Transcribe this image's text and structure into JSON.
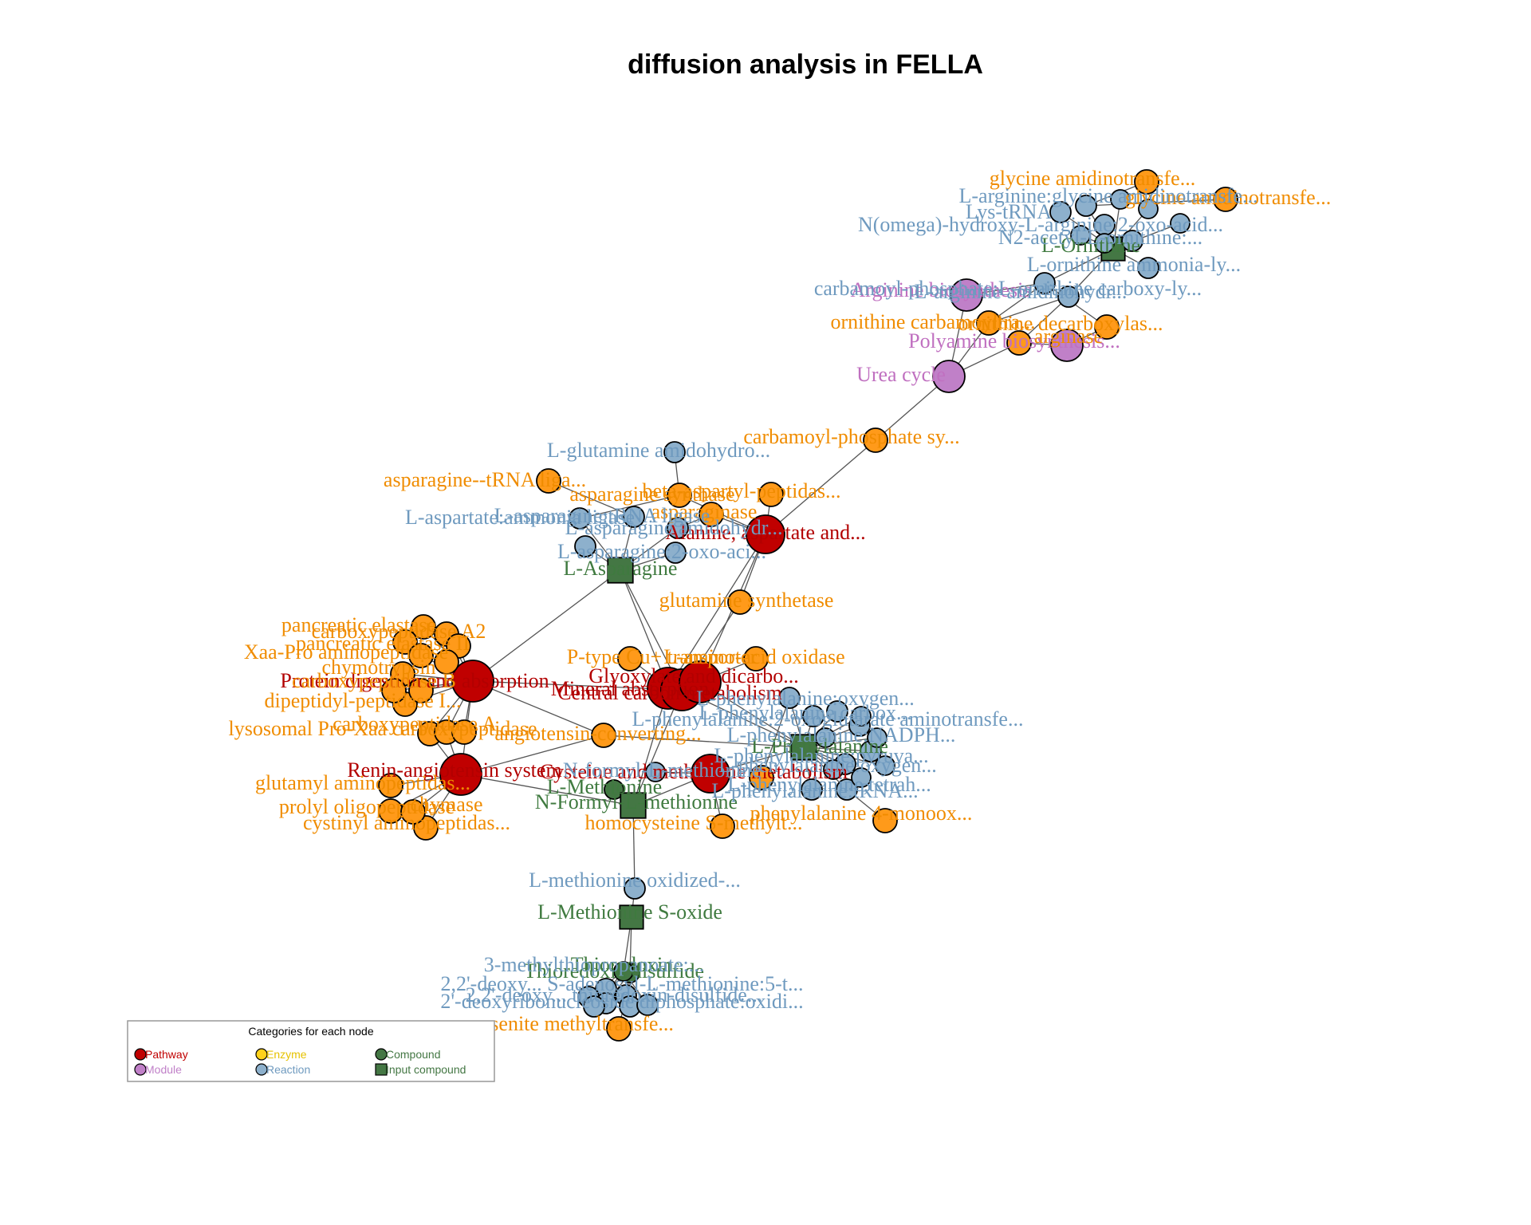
{
  "title": "diffusion analysis in FELLA",
  "colors": {
    "pathway": "#c00000",
    "module": "#c080c8",
    "enzyme": "#ff9a1a",
    "reaction": "#8db0cc",
    "compound": "#447744",
    "edge": "#555555"
  },
  "legend": {
    "title": "Categories for each node",
    "items": [
      {
        "label": "Pathway",
        "type": "pathway",
        "shape": "circle"
      },
      {
        "label": "Enzyme",
        "type": "enzyme",
        "shape": "circle"
      },
      {
        "label": "Compound",
        "type": "compound",
        "shape": "circle"
      },
      {
        "label": "Module",
        "type": "module",
        "shape": "circle"
      },
      {
        "label": "Reaction",
        "type": "reaction",
        "shape": "circle"
      },
      {
        "label": "Input compound",
        "type": "compound",
        "shape": "square"
      }
    ]
  },
  "nodes": [
    {
      "id": "ur_cycle",
      "label": "Urea cycle",
      "type": "module"
    },
    {
      "id": "arg_bio",
      "label": "Arginine biosynthesis",
      "type": "module"
    },
    {
      "id": "polyamine",
      "label": "Polyamine biosynthesis...",
      "type": "module"
    },
    {
      "id": "gly_amino1",
      "label": "glycine amidinotransfe...",
      "type": "enzyme"
    },
    {
      "id": "gly_amino2",
      "label": "glycine amidinotransfe...",
      "type": "enzyme"
    },
    {
      "id": "orn_carbamoyl",
      "label": "ornithine carbamoyltra...",
      "type": "enzyme"
    },
    {
      "id": "orn_decarb",
      "label": "ornithine decarboxylas...",
      "type": "enzyme"
    },
    {
      "id": "arginase",
      "label": "arginase",
      "type": "enzyme"
    },
    {
      "id": "carb_phos",
      "label": "carbamoyl-phosphate sy...",
      "type": "enzyme"
    },
    {
      "id": "l_ornithine",
      "label": "L-Ornithine",
      "type": "compound",
      "input": true
    },
    {
      "id": "r_arg1",
      "label": "L-arginine:glycine amidinotransfe...",
      "type": "reaction"
    },
    {
      "id": "r_lys",
      "label": "Lys-tRNA",
      "type": "reaction"
    },
    {
      "id": "r_nomega",
      "label": "N(omega)-hydroxy-L-arginine:2-oxo-acid...",
      "type": "reaction"
    },
    {
      "id": "r_n2",
      "label": "N2-acetyl-L-ornithine:...",
      "type": "reaction"
    },
    {
      "id": "r_orn_amm",
      "label": "L-ornithine ammonia-ly...",
      "type": "reaction"
    },
    {
      "id": "r_carbp",
      "label": "carbamoyl-phosphate:L-ornithine carboxy-ly...",
      "type": "reaction"
    },
    {
      "id": "r_arg_amid",
      "label": "L-arginine amidinohydr...",
      "type": "reaction"
    },
    {
      "id": "r_ornx1",
      "label": "",
      "type": "reaction"
    },
    {
      "id": "r_ornx2",
      "label": "",
      "type": "reaction"
    },
    {
      "id": "r_ornx3",
      "label": "",
      "type": "reaction"
    },
    {
      "id": "r_ornx4",
      "label": "",
      "type": "reaction"
    },
    {
      "id": "r_ornx5",
      "label": "",
      "type": "reaction"
    },
    {
      "id": "ala_asp",
      "label": "Alanine, aspartate and...",
      "type": "pathway"
    },
    {
      "id": "asn_trna",
      "label": "asparagine--tRNA liga...",
      "type": "enzyme"
    },
    {
      "id": "asn_synth",
      "label": "asparagine synthase",
      "type": "enzyme"
    },
    {
      "id": "beta_asp",
      "label": "beta-aspartyl-peptidas...",
      "type": "enzyme"
    },
    {
      "id": "asparaginase",
      "label": "asparaginase",
      "type": "enzyme"
    },
    {
      "id": "gln_synth",
      "label": "glutamine synthetase",
      "type": "enzyme"
    },
    {
      "id": "r_gln_amid",
      "label": "L-glutamine amidohydro...",
      "type": "reaction"
    },
    {
      "id": "r_asp_amm",
      "label": "L-aspartate:ammonia ligase",
      "type": "reaction"
    },
    {
      "id": "r_asn_trna",
      "label": "L-asparagine:tRNA ligase",
      "type": "reaction"
    },
    {
      "id": "r_asn_amid",
      "label": "L-asparagine amidohydr...",
      "type": "reaction"
    },
    {
      "id": "r_asn_2oxo",
      "label": "L-asparagine:2-oxo-aci...",
      "type": "reaction"
    },
    {
      "id": "r_asnx",
      "label": "",
      "type": "reaction"
    },
    {
      "id": "l_asparagine",
      "label": "L-Asparagine",
      "type": "compound",
      "input": true
    },
    {
      "id": "protein_dig",
      "label": "Protein digestion and absorption",
      "type": "pathway"
    },
    {
      "id": "pancreatic",
      "label": "pancreatic elastase",
      "type": "enzyme"
    },
    {
      "id": "carboxypep_a2",
      "label": "carboxypeptidase A2",
      "type": "enzyme"
    },
    {
      "id": "pancreatic2",
      "label": "pancreatic elastase II",
      "type": "enzyme"
    },
    {
      "id": "xaa_pro",
      "label": "Xaa-Pro aminopeptidase",
      "type": "enzyme"
    },
    {
      "id": "chymotrypsin",
      "label": "chymotrypsin",
      "type": "enzyme"
    },
    {
      "id": "carboxypep_b",
      "label": "carboxypeptidase B",
      "type": "enzyme"
    },
    {
      "id": "dipeptidyl",
      "label": "dipeptidyl-peptidase I...",
      "type": "enzyme"
    },
    {
      "id": "lysosomal",
      "label": "lysosomal Pro-Xaa carboxypeptidase",
      "type": "enzyme"
    },
    {
      "id": "carboxypep_a",
      "label": "carboxypeptidase A",
      "type": "enzyme"
    },
    {
      "id": "trypsin",
      "label": "",
      "type": "enzyme"
    },
    {
      "id": "enz_px1",
      "label": "",
      "type": "enzyme"
    },
    {
      "id": "enz_px2",
      "label": "",
      "type": "enzyme"
    },
    {
      "id": "enz_px3",
      "label": "",
      "type": "enzyme"
    },
    {
      "id": "renin",
      "label": "Renin-angiotensin system",
      "type": "pathway"
    },
    {
      "id": "angio_conv",
      "label": "angiotensin-converting...",
      "type": "enzyme"
    },
    {
      "id": "glutamyl",
      "label": "glutamyl aminopeptidas...",
      "type": "enzyme"
    },
    {
      "id": "prolyl",
      "label": "prolyl oligopeptidase",
      "type": "enzyme"
    },
    {
      "id": "cystinyl",
      "label": "cystinyl aminopeptidas...",
      "type": "enzyme"
    },
    {
      "id": "chymase",
      "label": "chymase",
      "type": "enzyme"
    },
    {
      "id": "mineral",
      "label": "Mineral absorption",
      "type": "pathway"
    },
    {
      "id": "central",
      "label": "Central carbon metabolism",
      "type": "pathway"
    },
    {
      "id": "glyoxylate",
      "label": "Glyoxylate and dicarbo...",
      "type": "pathway"
    },
    {
      "id": "ptype",
      "label": "P-type Cu+ transporter",
      "type": "enzyme"
    },
    {
      "id": "asp_ox",
      "label": "L-amino-acid oxidase",
      "type": "enzyme"
    },
    {
      "id": "cysteine",
      "label": "Cysteine and methionine metabolism",
      "type": "pathway"
    },
    {
      "id": "homocys",
      "label": "homocysteine S-methylt...",
      "type": "enzyme"
    },
    {
      "id": "l_methionine",
      "label": "L-Methionine",
      "type": "compound"
    },
    {
      "id": "n_formyl",
      "label": "N-Formyl-L-methionine",
      "type": "compound"
    },
    {
      "id": "l_methionine_in",
      "label": "",
      "type": "compound",
      "input": true
    },
    {
      "id": "r_nfmet",
      "label": "N-formyl-L-methionine",
      "type": "reaction"
    },
    {
      "id": "l_phenylalanine",
      "label": "L-Phenylalanine",
      "type": "compound",
      "input": true
    },
    {
      "id": "r_lphe",
      "label": "L-phenylalanine:oxygen...",
      "type": "reaction"
    },
    {
      "id": "r_lphe2",
      "label": "L-phenylalanine carbox...",
      "type": "reaction"
    },
    {
      "id": "r_lphe3",
      "label": "L-phenylalanine:2-oxoglutarate aminotransfe...",
      "type": "reaction"
    },
    {
      "id": "r_lphe4",
      "label": "L-phenylalanine:NADPH...",
      "type": "reaction"
    },
    {
      "id": "r_lphe5",
      "label": "L-phenylalanine:pyruva...",
      "type": "reaction"
    },
    {
      "id": "r_lphe6",
      "label": "L-phenylalanine:oxygen...",
      "type": "reaction"
    },
    {
      "id": "r_lphe7",
      "label": "L-phenylalanine,tetrah...",
      "type": "reaction"
    },
    {
      "id": "r_lphe8",
      "label": "L-phenylalanine:tRNA...",
      "type": "reaction"
    },
    {
      "id": "r_pheox",
      "label": "",
      "type": "reaction"
    },
    {
      "id": "r_phex1",
      "label": "",
      "type": "reaction"
    },
    {
      "id": "r_phex2",
      "label": "",
      "type": "reaction"
    },
    {
      "id": "r_phex3",
      "label": "",
      "type": "reaction"
    },
    {
      "id": "r_phex4",
      "label": "",
      "type": "reaction"
    },
    {
      "id": "r_phex5",
      "label": "",
      "type": "reaction"
    },
    {
      "id": "phe_monoox",
      "label": "phenylalanine 4-monoox...",
      "type": "enzyme"
    },
    {
      "id": "phe_enz2",
      "label": "",
      "type": "enzyme"
    },
    {
      "id": "r_lmet_ox",
      "label": "L-methionine oxidized-...",
      "type": "reaction"
    },
    {
      "id": "l_met_sox",
      "label": "L-Methionine S-oxide",
      "type": "compound",
      "input": true
    },
    {
      "id": "thioredoxin",
      "label": "Thioredoxin",
      "type": "compound"
    },
    {
      "id": "thioredoxin_ds",
      "label": "Thioredoxin disulfide",
      "type": "compound"
    },
    {
      "id": "r_3meth",
      "label": "3-methylthiopropanoate:...",
      "type": "reaction"
    },
    {
      "id": "r_22deoxy",
      "label": "2,2'-deoxy... S-adenosyl-L-methionine:5-t...",
      "type": "reaction"
    },
    {
      "id": "r_22deoxy2",
      "label": "2,2'-deoxy... thioredoxin-disulfide...",
      "type": "reaction"
    },
    {
      "id": "r_2deoxy3",
      "label": "2'-deoxyribonucleoside diphosphate:oxidi...",
      "type": "reaction"
    },
    {
      "id": "r_thx1",
      "label": "",
      "type": "reaction"
    },
    {
      "id": "r_thx2",
      "label": "",
      "type": "reaction"
    },
    {
      "id": "r_thx3",
      "label": "",
      "type": "reaction"
    },
    {
      "id": "arsenite",
      "label": "arsenite methyltransfe...",
      "type": "enzyme"
    }
  ],
  "edges": [
    [
      "ur_cycle",
      "carb_phos"
    ],
    [
      "ur_cycle",
      "arginase"
    ],
    [
      "ur_cycle",
      "orn_carbamoyl"
    ],
    [
      "ur_cycle",
      "arg_bio"
    ],
    [
      "arginase",
      "polyamine"
    ],
    [
      "orn_carbamoyl",
      "r_arg_amid"
    ],
    [
      "orn_decarb",
      "polyamine"
    ],
    [
      "orn_decarb",
      "r_carbp"
    ],
    [
      "l_ornithine",
      "r_arg1"
    ],
    [
      "l_ornithine",
      "r_n2"
    ],
    [
      "l_ornithine",
      "r_orn_amm"
    ],
    [
      "l_ornithine",
      "r_carbp"
    ],
    [
      "l_ornithine",
      "r_arg_amid"
    ],
    [
      "l_ornithine",
      "r_nomega"
    ],
    [
      "l_ornithine",
      "r_lys"
    ],
    [
      "l_ornithine",
      "r_ornx1"
    ],
    [
      "l_ornithine",
      "r_ornx2"
    ],
    [
      "l_ornithine",
      "r_ornx3"
    ],
    [
      "l_ornithine",
      "r_ornx4"
    ],
    [
      "l_ornithine",
      "r_ornx5"
    ],
    [
      "r_arg1",
      "gly_amino1"
    ],
    [
      "r_arg1",
      "gly_amino2"
    ],
    [
      "r_arg_amid",
      "arginase"
    ],
    [
      "r_carbp",
      "orn_carbamoyl"
    ],
    [
      "arg_bio",
      "r_carbp"
    ],
    [
      "carb_phos",
      "ala_asp"
    ],
    [
      "ala_asp",
      "beta_asp"
    ],
    [
      "ala_asp",
      "asparaginase"
    ],
    [
      "ala_asp",
      "gln_synth"
    ],
    [
      "ala_asp",
      "asn_synth"
    ],
    [
      "l_asparagine",
      "r_asp_amm"
    ],
    [
      "l_asparagine",
      "r_asn_trna"
    ],
    [
      "l_asparagine",
      "r_asn_amid"
    ],
    [
      "l_asparagine",
      "r_asn_2oxo"
    ],
    [
      "l_asparagine",
      "r_asnx"
    ],
    [
      "r_asn_trna",
      "asn_trna"
    ],
    [
      "r_asn_amid",
      "asparaginase"
    ],
    [
      "r_asp_amm",
      "asn_synth"
    ],
    [
      "r_gln_amid",
      "asn_synth"
    ],
    [
      "l_asparagine",
      "protein_dig"
    ],
    [
      "l_asparagine",
      "central"
    ],
    [
      "l_asparagine",
      "mineral"
    ],
    [
      "gln_synth",
      "central"
    ],
    [
      "ala_asp",
      "glyoxylate"
    ],
    [
      "ala_asp",
      "mineral"
    ],
    [
      "protein_dig",
      "pancreatic"
    ],
    [
      "protein_dig",
      "carboxypep_a2"
    ],
    [
      "protein_dig",
      "pancreatic2"
    ],
    [
      "protein_dig",
      "xaa_pro"
    ],
    [
      "protein_dig",
      "chymotrypsin"
    ],
    [
      "protein_dig",
      "carboxypep_b"
    ],
    [
      "protein_dig",
      "dipeptidyl"
    ],
    [
      "protein_dig",
      "lysosomal"
    ],
    [
      "protein_dig",
      "carboxypep_a"
    ],
    [
      "protein_dig",
      "trypsin"
    ],
    [
      "protein_dig",
      "enz_px1"
    ],
    [
      "protein_dig",
      "enz_px2"
    ],
    [
      "protein_dig",
      "enz_px3"
    ],
    [
      "protein_dig",
      "renin"
    ],
    [
      "renin",
      "glutamyl"
    ],
    [
      "renin",
      "prolyl"
    ],
    [
      "renin",
      "cystinyl"
    ],
    [
      "renin",
      "chymase"
    ],
    [
      "renin",
      "angio_conv"
    ],
    [
      "renin",
      "carboxypep_a"
    ],
    [
      "renin",
      "lysosomal"
    ],
    [
      "angio_conv",
      "protein_dig"
    ],
    [
      "mineral",
      "ptype"
    ],
    [
      "mineral",
      "central"
    ],
    [
      "mineral",
      "l_methionine_in"
    ],
    [
      "central",
      "l_phenylalanine"
    ],
    [
      "central",
      "l_methionine_in"
    ],
    [
      "glyoxylate",
      "asp_ox"
    ],
    [
      "glyoxylate",
      "l_phenylalanine"
    ],
    [
      "central",
      "protein_dig"
    ],
    [
      "cysteine",
      "l_methionine_in"
    ],
    [
      "cysteine",
      "homocys"
    ],
    [
      "cysteine",
      "l_phenylalanine"
    ],
    [
      "cysteine",
      "r_nfmet"
    ],
    [
      "l_methionine",
      "l_methionine_in"
    ],
    [
      "l_methionine_in",
      "n_formyl"
    ],
    [
      "l_methionine_in",
      "r_lmet_ox"
    ],
    [
      "l_phenylalanine",
      "r_lphe"
    ],
    [
      "l_phenylalanine",
      "r_lphe2"
    ],
    [
      "l_phenylalanine",
      "r_lphe3"
    ],
    [
      "l_phenylalanine",
      "r_lphe4"
    ],
    [
      "l_phenylalanine",
      "r_lphe5"
    ],
    [
      "l_phenylalanine",
      "r_lphe6"
    ],
    [
      "l_phenylalanine",
      "r_lphe7"
    ],
    [
      "l_phenylalanine",
      "r_lphe8"
    ],
    [
      "l_phenylalanine",
      "r_pheox"
    ],
    [
      "l_phenylalanine",
      "r_phex1"
    ],
    [
      "l_phenylalanine",
      "r_phex2"
    ],
    [
      "l_phenylalanine",
      "r_phex3"
    ],
    [
      "l_phenylalanine",
      "r_phex4"
    ],
    [
      "l_phenylalanine",
      "r_phex5"
    ],
    [
      "r_lphe7",
      "phe_monoox"
    ],
    [
      "r_lphe",
      "phe_enz2"
    ],
    [
      "renin",
      "l_methionine_in"
    ],
    [
      "angio_conv",
      "l_phenylalanine"
    ],
    [
      "r_lmet_ox",
      "l_met_sox"
    ],
    [
      "l_met_sox",
      "thioredoxin"
    ],
    [
      "l_met_sox",
      "thioredoxin_ds"
    ],
    [
      "thioredoxin",
      "r_3meth"
    ],
    [
      "thioredoxin",
      "r_22deoxy"
    ],
    [
      "thioredoxin",
      "r_22deoxy2"
    ],
    [
      "thioredoxin",
      "r_2deoxy3"
    ],
    [
      "thioredoxin_ds",
      "r_thx1"
    ],
    [
      "thioredoxin_ds",
      "r_thx2"
    ],
    [
      "thioredoxin_ds",
      "r_thx3"
    ],
    [
      "r_22deoxy",
      "arsenite"
    ]
  ]
}
